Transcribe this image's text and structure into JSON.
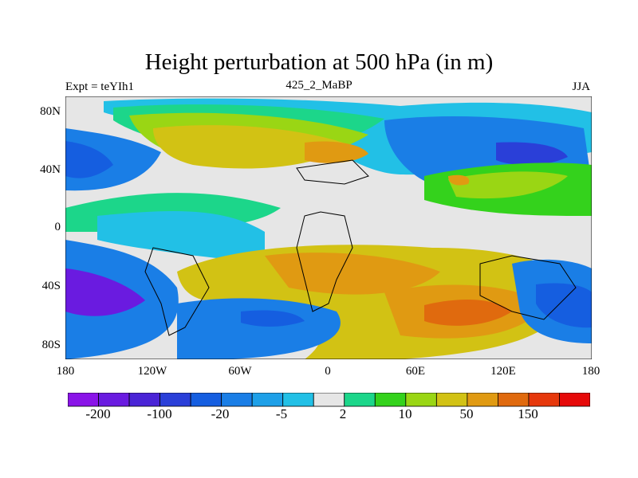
{
  "header": {
    "title": "Height perturbation at 500 hPa (in m)",
    "experiment": "Expt = teYIh1",
    "run": "425_2_MaBP",
    "season": "JJA"
  },
  "axes": {
    "lat_ticks": [
      "80N",
      "40N",
      "0",
      "40S",
      "80S"
    ],
    "lon_ticks": [
      "180",
      "120W",
      "60W",
      "0",
      "60E",
      "120E",
      "180"
    ]
  },
  "colorbar": {
    "colors": [
      "#8a14e8",
      "#6a1be0",
      "#4a24d6",
      "#2a3fd8",
      "#155ee0",
      "#1a7ee6",
      "#1ea0e8",
      "#22c0e6",
      "#e6e6e6",
      "#1cd68a",
      "#34d21c",
      "#9ad614",
      "#d2c214",
      "#e09a12",
      "#e06a0e",
      "#e6380c",
      "#e60a0a"
    ],
    "labels": [
      "-200",
      "-100",
      "-20",
      "-5",
      "2",
      "10",
      "50",
      "150"
    ]
  }
}
